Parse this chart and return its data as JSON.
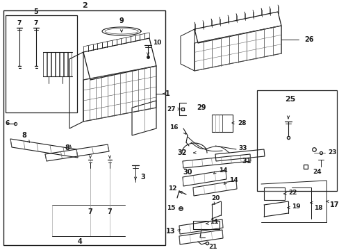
{
  "bg_color": "#ffffff",
  "lc": "#1a1a1a",
  "fig_w": 4.89,
  "fig_h": 3.6,
  "dpi": 100
}
